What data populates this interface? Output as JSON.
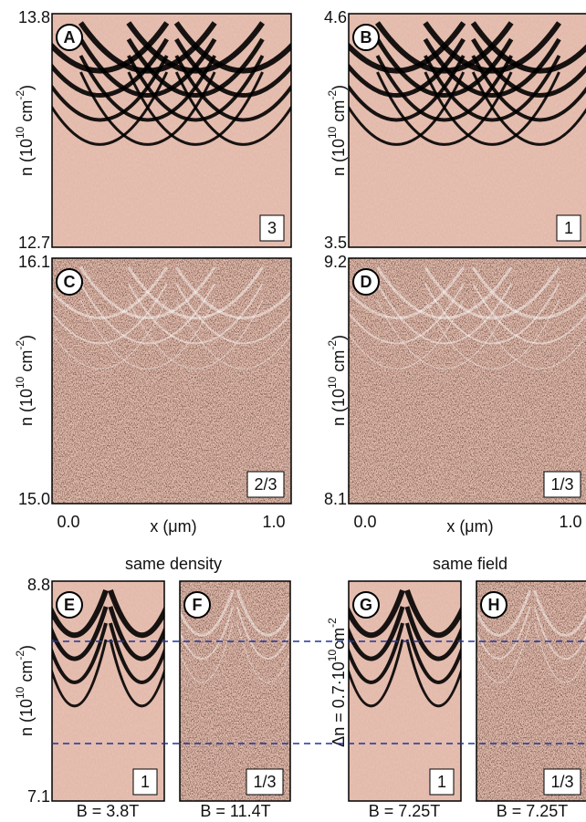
{
  "panels": [
    {
      "letter": "A",
      "tag": "3",
      "ytop": "13.8",
      "ybottom": "12.7"
    },
    {
      "letter": "B",
      "tag": "1",
      "ytop": "4.6",
      "ybottom": "3.5"
    },
    {
      "letter": "C",
      "tag": "2/3",
      "ytop": "16.1",
      "ybottom": "15.0"
    },
    {
      "letter": "D",
      "tag": "1/3",
      "ytop": "9.2",
      "ybottom": "8.1"
    },
    {
      "letter": "E",
      "tag": "1",
      "ytop": "8.8",
      "ybottom": "7.1"
    },
    {
      "letter": "F",
      "tag": "1/3"
    },
    {
      "letter": "G",
      "tag": "1"
    },
    {
      "letter": "H",
      "tag": "1/3"
    }
  ],
  "x_axis": {
    "start": "0.0",
    "label": "x (μm)",
    "end": "1.0"
  },
  "y_label": {
    "base": "n (10",
    "sup1": "10",
    "mid": " cm",
    "sup2": "-2",
    "end": ")"
  },
  "dn_label": {
    "base": "Δn = 0.7·10",
    "sup1": "10",
    "mid": "cm",
    "sup2": "-2"
  },
  "headings": [
    "same density",
    "same field"
  ],
  "fields": [
    "B = 3.8T",
    "B = 11.4T",
    "B = 7.25T",
    "B = 7.25T"
  ]
}
